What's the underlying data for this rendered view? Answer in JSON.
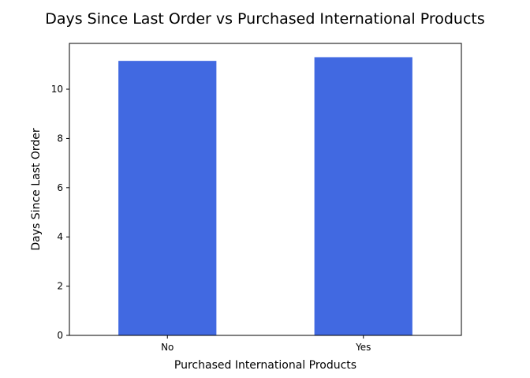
{
  "chart_data": {
    "type": "bar",
    "title": "Days Since Last Order vs Purchased International Products",
    "xlabel": "Purchased International Products",
    "ylabel": "Days Since Last Order",
    "categories": [
      "No",
      "Yes"
    ],
    "values": [
      11.15,
      11.3
    ],
    "ylim": [
      0,
      11.86
    ],
    "yticks": [
      0,
      2,
      4,
      6,
      8,
      10
    ],
    "grid": false,
    "bar_color": "#4169e1",
    "axes_color": "#000000"
  }
}
